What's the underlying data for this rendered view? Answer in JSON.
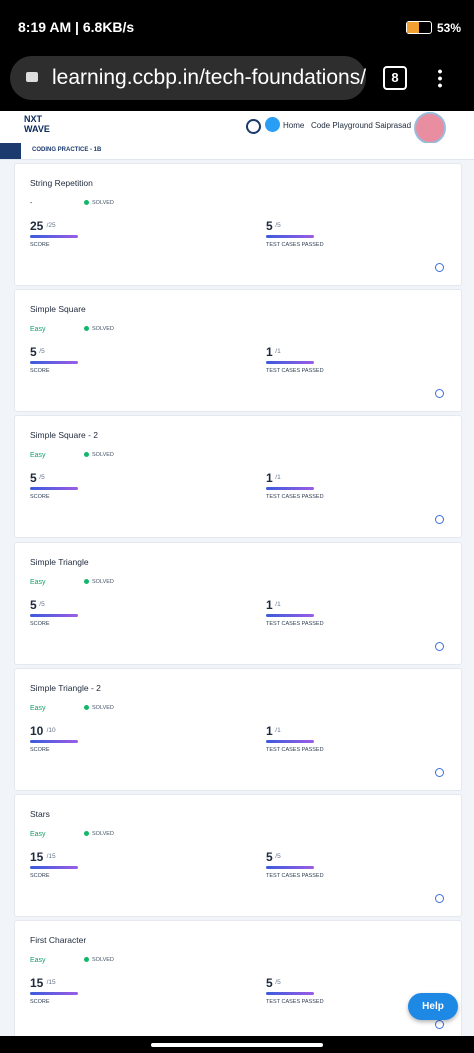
{
  "status_bar": {
    "time_speed": "8:19 AM | 6.8KB/s",
    "battery": "53%"
  },
  "browser": {
    "url": "learning.ccbp.in/tech-foundations/",
    "tab_count": "8"
  },
  "header": {
    "logo_top": "NXT",
    "logo_bottom": "WAVE",
    "nav": [
      "Home",
      "Code Playground",
      "Saiprasad"
    ]
  },
  "breadcrumb": "CODING PRACTICE - 1B",
  "labels": {
    "score": "SCORE",
    "test_cases": "TEST CASES PASSED"
  },
  "cards": [
    {
      "title": "String Repetition",
      "difficulty": "-",
      "status": "SOLVED",
      "score": "25",
      "score_total": "/25",
      "passed": "5",
      "passed_total": "/5"
    },
    {
      "title": "Simple Square",
      "difficulty": "Easy",
      "status": "SOLVED",
      "score": "5",
      "score_total": "/5",
      "passed": "1",
      "passed_total": "/1"
    },
    {
      "title": "Simple Square - 2",
      "difficulty": "Easy",
      "status": "SOLVED",
      "score": "5",
      "score_total": "/5",
      "passed": "1",
      "passed_total": "/1"
    },
    {
      "title": "Simple Triangle",
      "difficulty": "Easy",
      "status": "SOLVED",
      "score": "5",
      "score_total": "/5",
      "passed": "1",
      "passed_total": "/1"
    },
    {
      "title": "Simple Triangle - 2",
      "difficulty": "Easy",
      "status": "SOLVED",
      "score": "10",
      "score_total": "/10",
      "passed": "1",
      "passed_total": "/1"
    },
    {
      "title": "Stars",
      "difficulty": "Easy",
      "status": "SOLVED",
      "score": "15",
      "score_total": "/15",
      "passed": "5",
      "passed_total": "/5"
    },
    {
      "title": "First Character",
      "difficulty": "Easy",
      "status": "SOLVED",
      "score": "15",
      "score_total": "/15",
      "passed": "5",
      "passed_total": "/5"
    }
  ],
  "help": "Help"
}
